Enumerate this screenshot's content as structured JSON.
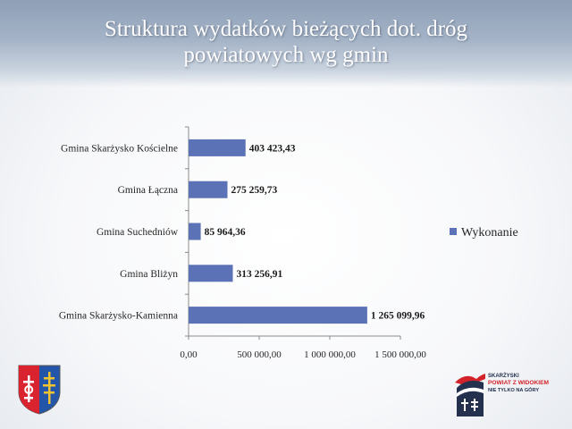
{
  "slide": {
    "title_line1": "Struktura wydatków bieżących dot. dróg",
    "title_line2": "powiatowych wg gmin"
  },
  "chart_data": {
    "type": "bar",
    "orientation": "horizontal",
    "categories": [
      "Gmina Skarżysko Kościelne",
      "Gmina Łączna",
      "Gmina Suchedniów",
      "Gmina Bliżyn",
      "Gmina Skarżysko-Kamienna"
    ],
    "series": [
      {
        "name": "Wykonanie",
        "values": [
          403423.43,
          275259.73,
          85964.36,
          313256.91,
          1265099.96
        ],
        "labels": [
          "403 423,43",
          "275 259,73",
          "85 964,36",
          "313 256,91",
          "1 265 099,96"
        ],
        "color": "#5b73b6"
      }
    ],
    "x_ticks": [
      "0,00",
      "500 000,00",
      "1 000 000,00",
      "1 500 000,00"
    ],
    "xlim": [
      0,
      1500000
    ],
    "grid": false,
    "legend_position": "right"
  },
  "logos": {
    "right": {
      "line1": "SKARŻYSKI",
      "line2": "POWIAT Z WIDOKIEM",
      "line3": "NIE TYLKO NA GÓRY"
    }
  }
}
